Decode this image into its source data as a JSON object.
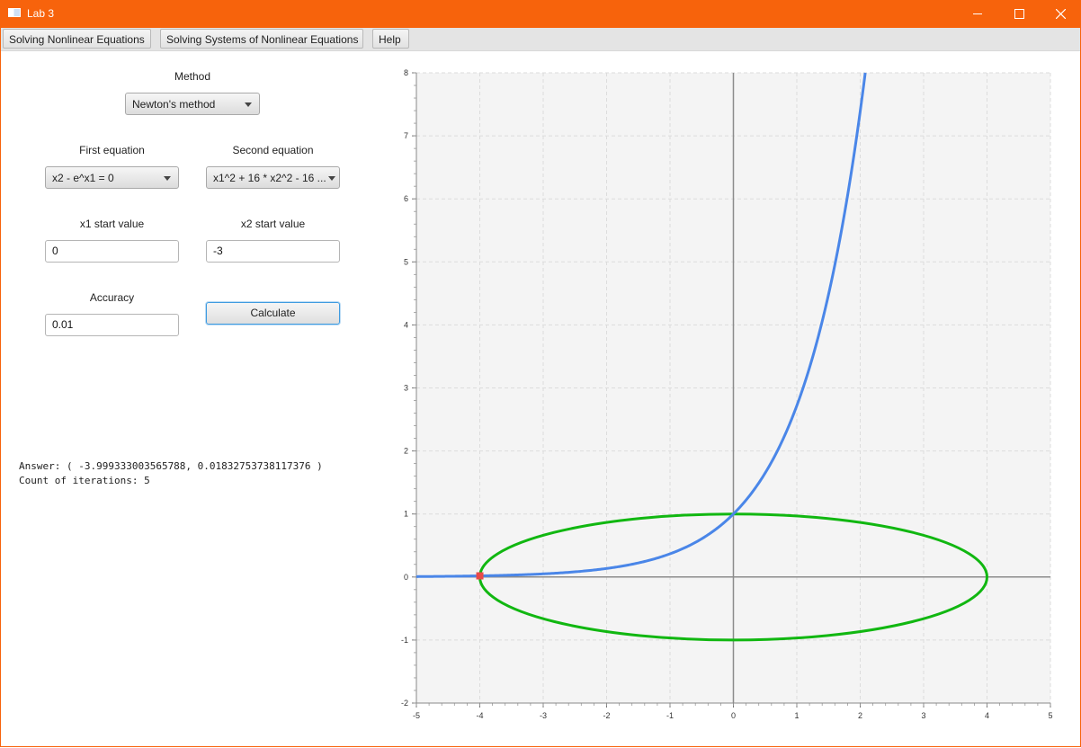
{
  "window": {
    "title": "Lab 3"
  },
  "menu": {
    "items": [
      {
        "label": "Solving Nonlinear Equations"
      },
      {
        "label": "Solving Systems of Nonlinear Equations"
      },
      {
        "label": "Help"
      }
    ]
  },
  "form": {
    "method_label": "Method",
    "method_value": "Newton's method",
    "first_equation_label": "First equation",
    "first_equation_value": "x2 - e^x1 = 0",
    "second_equation_label": "Second equation",
    "second_equation_value": "x1^2 + 16 * x2^2 - 16 ...",
    "x1_start_label": "x1 start value",
    "x1_start_value": "0",
    "x2_start_label": "x2 start value",
    "x2_start_value": "-3",
    "accuracy_label": "Accuracy",
    "accuracy_value": "0.01",
    "calculate_label": "Calculate"
  },
  "result": {
    "answer_line": "Answer: ( -3.999333003565788, 0.01832753738117376 )",
    "iterations_line": "Count of iterations: 5"
  },
  "chart_data": {
    "type": "line",
    "xlim": [
      -5,
      5
    ],
    "ylim": [
      -2,
      8
    ],
    "x_ticks": [
      "-5",
      "-4",
      "-3",
      "-2",
      "-1",
      "0",
      "1",
      "2",
      "3",
      "4",
      "5"
    ],
    "y_ticks": [
      "-2",
      "-1",
      "0",
      "1",
      "2",
      "3",
      "4",
      "5",
      "6",
      "7",
      "8"
    ],
    "grid": true,
    "colors": {
      "exp_curve": "#4a86e8",
      "ellipse": "#11b711",
      "solution_point": "#e84a4a",
      "background": "#f4f4f4"
    },
    "series": [
      {
        "function": "x2 = e^x1",
        "x_range": [
          -5,
          2.08
        ]
      },
      {
        "function": "x1^2 + 16*x2^2 = 16",
        "x_range": [
          -4,
          4
        ]
      }
    ],
    "solution_point": {
      "x": -3.999333003565788,
      "y": 0.01832753738117376
    }
  }
}
